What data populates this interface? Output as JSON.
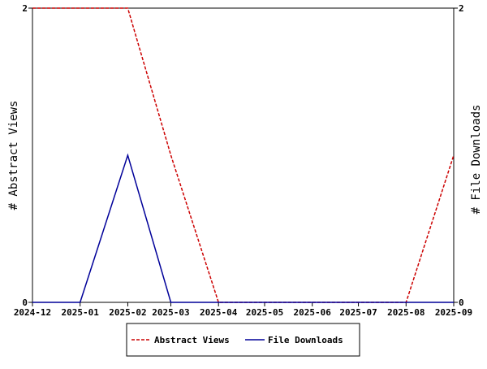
{
  "chart_data": {
    "type": "line",
    "title": "",
    "xlabel": "",
    "ylabel_left": "# Abstract Views",
    "ylabel_right": "# File Downloads",
    "categories": [
      "2024-12",
      "2025-01",
      "2025-02",
      "2025-03",
      "2025-04",
      "2025-05",
      "2025-06",
      "2025-07",
      "2025-08",
      "2025-09"
    ],
    "x_dates": [
      "2024-12-01",
      "2025-01-01",
      "2025-02-01",
      "2025-03-01",
      "2025-04-01",
      "2025-05-01",
      "2025-06-01",
      "2025-07-01",
      "2025-08-01",
      "2025-09-01"
    ],
    "ylim_left": [
      0,
      2
    ],
    "ylim_right": [
      0,
      2
    ],
    "yticks_left": [
      "0",
      "2"
    ],
    "yticks_right": [
      "0",
      "2"
    ],
    "grid": false,
    "legend_position": "bottom",
    "series": [
      {
        "name": "Abstract Views",
        "axis": "left",
        "color": "#cc0000",
        "dash": "dashed",
        "values": [
          2,
          2,
          2,
          1,
          0,
          0,
          0,
          0,
          0,
          1
        ]
      },
      {
        "name": "File Downloads",
        "axis": "right",
        "color": "#000099",
        "dash": "solid",
        "values": [
          0,
          0,
          1,
          0,
          0,
          0,
          0,
          0,
          0,
          0
        ]
      }
    ]
  }
}
